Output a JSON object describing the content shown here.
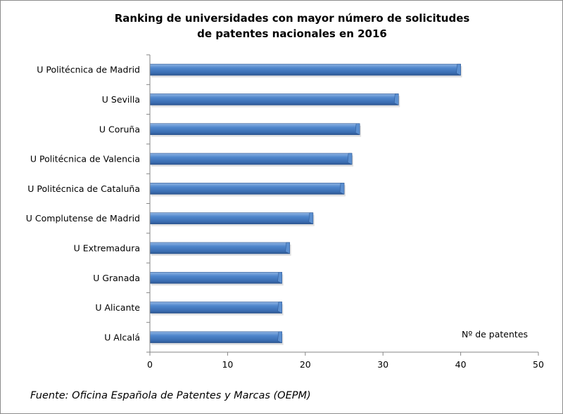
{
  "chart_data": {
    "type": "bar",
    "orientation": "horizontal",
    "title": [
      "Ranking de universidades con mayor número de solicitudes",
      "de patentes nacionales en 2016"
    ],
    "categories": [
      "U Politécnica de Madrid",
      "U Sevilla",
      "U Coruña",
      "U Politécnica de Valencia",
      "U Politécnica de Cataluña",
      "U Complutense de Madrid",
      "U Extremadura",
      "U Granada",
      "U Alicante",
      "U Alcalá"
    ],
    "values": [
      40,
      32,
      27,
      26,
      25,
      21,
      18,
      17,
      17,
      17
    ],
    "xlabel": "Nº de patentes",
    "ylabel": "",
    "xlim": [
      0,
      50
    ],
    "xticks": [
      "0",
      "10",
      "20",
      "30",
      "40",
      "50"
    ],
    "grid": false,
    "legend": "none",
    "bar_color": "#4a7ebb"
  },
  "source": "Fuente: Oficina Española de Patentes y Marcas (OEPM)"
}
